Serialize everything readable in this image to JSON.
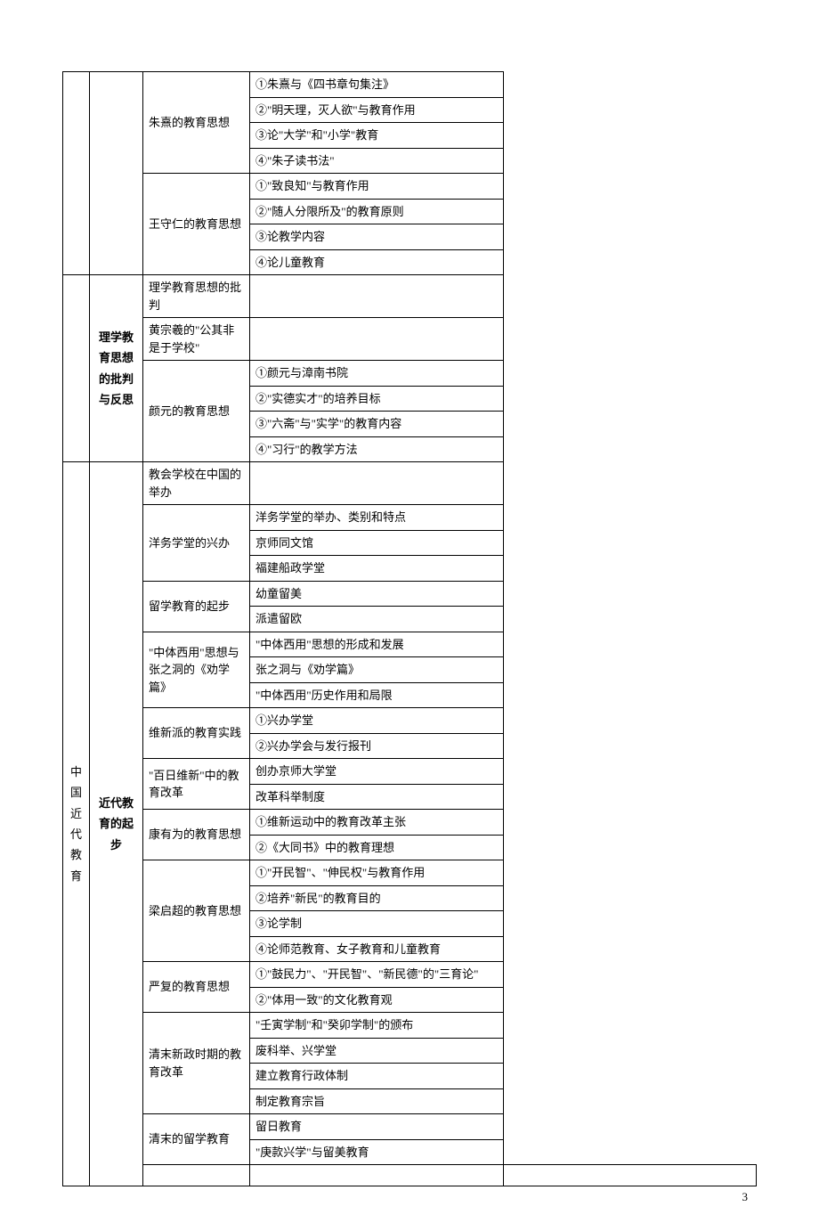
{
  "page_number": "3",
  "col1": {
    "blank_top": "",
    "modern": "中国近代教育"
  },
  "col2": {
    "blank_top": "",
    "lixue": "理学教育思想的批判与反思",
    "qibu": "近代教育的起步",
    "blank_bottom": ""
  },
  "col3": {
    "zhuxi": "朱熹的教育思想",
    "wangshouren": "王守仁的教育思想",
    "lixue_pipan": "理学教育思想的批判",
    "huangzongxi": "黄宗羲的\"公其非是于学校\"",
    "yanyuan": "颜元的教育思想",
    "jiaohui": "教会学校在中国的举办",
    "yangwu": "洋务学堂的兴办",
    "liuxue": "留学教育的起步",
    "zhongti": "\"中体西用\"思想与张之洞的《劝学篇》",
    "weixin": "维新派的教育实践",
    "bairi": "\"百日维新\"中的教育改革",
    "kangyouwei": "康有为的教育思想",
    "liangqichao": "梁启超的教育思想",
    "yanfu": "严复的教育思想",
    "qingmo_xz": "清末新政时期的教育改革",
    "qingmo_lx": "清末的留学教育"
  },
  "col4": {
    "zhuxi1": "①朱熹与《四书章句集注》",
    "zhuxi2": "②\"明天理，灭人欲\"与教育作用",
    "zhuxi3": "③论\"大学\"和\"小学\"教育",
    "zhuxi4": "④\"朱子读书法\"",
    "wang1": "①\"致良知\"与教育作用",
    "wang2": "②\"随人分限所及\"的教育原则",
    "wang3": "③论教学内容",
    "wang4": "④论儿童教育",
    "lixue_empty": "",
    "huang_empty": "",
    "yan1": "①颜元与漳南书院",
    "yan2": "②\"实德实才\"的培养目标",
    "yan3": "③\"六斋\"与\"实学\"的教育内容",
    "yan4": "④\"习行\"的教学方法",
    "jiaohui_empty": "",
    "yw1": "洋务学堂的举办、类别和特点",
    "yw2": "京师同文馆",
    "yw3": "福建船政学堂",
    "lx1": "幼童留美",
    "lx2": "派遣留欧",
    "zt1": "\"中体西用\"思想的形成和发展",
    "zt2": "张之洞与《劝学篇》",
    "zt3": "\"中体西用\"历史作用和局限",
    "wx1": "①兴办学堂",
    "wx2": "②兴办学会与发行报刊",
    "br1": "创办京师大学堂",
    "br2": "改革科举制度",
    "ky1": "①维新运动中的教育改革主张",
    "ky2": "②《大同书》中的教育理想",
    "lq1": "①\"开民智\"、\"伸民权\"与教育作用",
    "lq2": "②培养\"新民\"的教育目的",
    "lq3": "③论学制",
    "lq4": "④论师范教育、女子教育和儿童教育",
    "yf1": "①\"鼓民力\"、\"开民智\"、\"新民德\"的\"三育论\"",
    "yf2": "②\"体用一致\"的文化教育观",
    "qm1": "\"壬寅学制\"和\"癸卯学制\"的颁布",
    "qm2": "废科举、兴学堂",
    "qm3": "建立教育行政体制",
    "qm4": "制定教育宗旨",
    "qlx1": "留日教育",
    "qlx2": "\"庚款兴学\"与留美教育",
    "last_empty": ""
  }
}
